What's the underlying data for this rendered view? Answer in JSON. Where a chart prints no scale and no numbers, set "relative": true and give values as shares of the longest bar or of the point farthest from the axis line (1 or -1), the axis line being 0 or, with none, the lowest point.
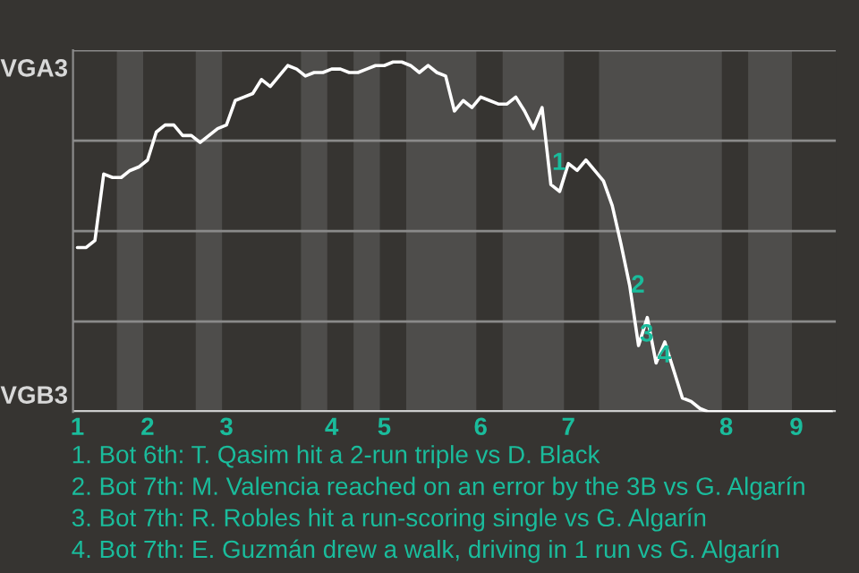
{
  "chart_data": {
    "type": "line",
    "relative": true,
    "categories": [
      "1",
      null,
      null,
      null,
      null,
      null,
      null,
      null,
      "2",
      null,
      null,
      null,
      null,
      null,
      null,
      null,
      null,
      "3",
      null,
      null,
      null,
      null,
      null,
      null,
      null,
      null,
      null,
      null,
      null,
      "4",
      null,
      null,
      null,
      null,
      null,
      "5",
      null,
      null,
      null,
      null,
      null,
      null,
      null,
      null,
      null,
      null,
      "6",
      null,
      null,
      null,
      null,
      null,
      null,
      null,
      null,
      null,
      "7",
      null,
      null,
      null,
      null,
      null,
      null,
      null,
      null,
      null,
      null,
      null,
      null,
      null,
      null,
      null,
      null,
      null,
      "8",
      null,
      null,
      null,
      null,
      null,
      null,
      null,
      "9",
      null,
      null,
      null,
      null
    ],
    "series": [
      {
        "color": "#ffffff",
        "values": [
          0.47,
          0.47,
          0.49,
          0.68,
          0.67,
          0.67,
          0.69,
          0.7,
          0.72,
          0.8,
          0.82,
          0.82,
          0.79,
          0.79,
          0.77,
          0.79,
          0.81,
          0.82,
          0.89,
          0.9,
          0.91,
          0.95,
          0.93,
          0.96,
          0.99,
          0.98,
          0.96,
          0.97,
          0.97,
          0.98,
          0.98,
          0.97,
          0.97,
          0.98,
          0.99,
          0.99,
          1,
          1,
          0.99,
          0.97,
          0.99,
          0.97,
          0.96,
          0.86,
          0.89,
          0.87,
          0.9,
          0.89,
          0.88,
          0.88,
          0.9,
          0.86,
          0.81,
          0.87,
          0.65,
          0.63,
          0.71,
          0.69,
          0.72,
          0.69,
          0.66,
          0.59,
          0.48,
          0.36,
          0.19,
          0.27,
          0.14,
          0.2,
          0.12,
          0.04,
          0.03,
          0.01,
          0,
          0,
          0,
          0,
          0,
          0,
          0,
          0,
          0,
          0,
          0,
          0,
          0,
          0,
          0
        ]
      }
    ],
    "annotations": [
      {
        "text": "1",
        "y": 0.71
      },
      {
        "text": "2",
        "y": 0.36
      },
      {
        "text": "3",
        "y": 0.22
      },
      {
        "text": "4",
        "y": 0.16
      },
      "VGA3",
      "VGB3",
      "1. Bot 6th: T. Qasim hit a 2-run triple vs D. Black",
      "2. Bot 7th: M. Valencia reached on an error by the 3B vs G. Algarín",
      "3. Bot 7th: R. Robles hit a run-scoring single vs G. Algarín",
      "4. Bot 7th: E. Guzmán drew a walk, driving in 1 run vs G. Algarín"
    ]
  }
}
